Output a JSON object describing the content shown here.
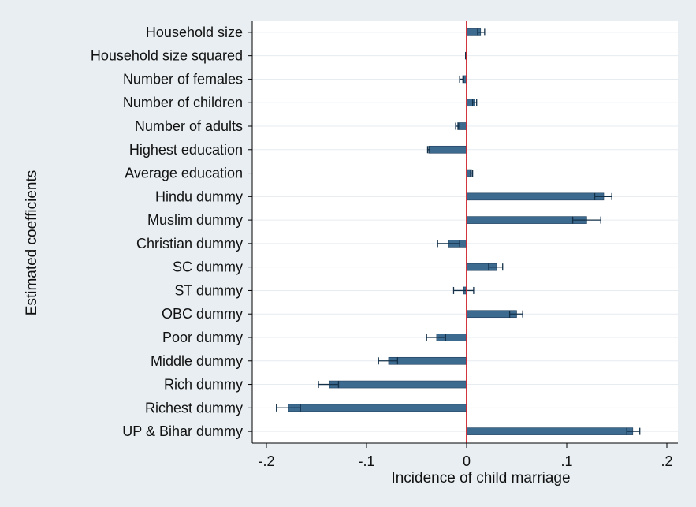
{
  "chart_data": {
    "type": "bar",
    "orientation": "horizontal",
    "xlabel": "Incidence of child marriage",
    "ylabel": "Estimated coefficients",
    "xlim": [
      -0.2,
      0.2
    ],
    "x_ticks": [
      -0.2,
      -0.1,
      0,
      0.1,
      0.2
    ],
    "x_tick_labels": [
      "-.2",
      "-.1",
      "0",
      ".1",
      ".2"
    ],
    "grid": true,
    "zero_line": true,
    "categories": [
      "Household size",
      "Household size squared",
      "Number of females",
      "Number of children",
      "Number of adults",
      "Highest education",
      "Average education",
      "Hindu dummy",
      "Muslim dummy",
      "Christian dummy",
      "SC dummy",
      "ST dummy",
      "OBC dummy",
      "Poor dummy",
      "Middle dummy",
      "Rich dummy",
      "Richest dummy",
      "UP & Bihar dummy"
    ],
    "values": [
      0.014,
      -0.001,
      -0.004,
      0.008,
      -0.009,
      -0.038,
      0.005,
      0.137,
      0.12,
      -0.018,
      0.03,
      -0.003,
      0.05,
      -0.03,
      -0.078,
      -0.137,
      -0.178,
      0.166
    ],
    "ci_low": [
      0.011,
      -0.001,
      -0.007,
      0.006,
      -0.011,
      -0.039,
      0.004,
      0.128,
      0.106,
      -0.029,
      0.022,
      -0.013,
      0.043,
      -0.04,
      -0.088,
      -0.148,
      -0.19,
      0.16
    ],
    "ci_high": [
      0.018,
      -0.001,
      -0.003,
      0.01,
      -0.008,
      -0.037,
      0.006,
      0.145,
      0.134,
      -0.007,
      0.036,
      0.007,
      0.056,
      -0.021,
      -0.069,
      -0.128,
      -0.166,
      0.173
    ],
    "colors": {
      "bar": "#3d6a8f",
      "bar_edge": "#1f3f5c",
      "whisker": "#14314a",
      "zero_line": "#d0202a",
      "grid": "#e6ecf0",
      "plot_bg": "#ffffff",
      "figure_bg": "#e8eef2"
    }
  }
}
